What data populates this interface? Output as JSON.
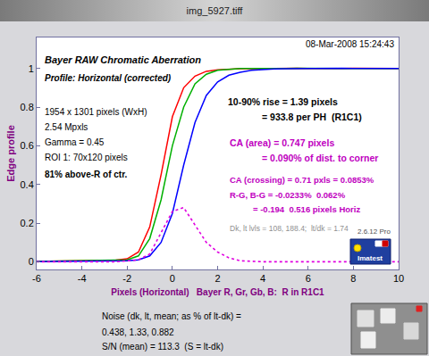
{
  "chart_data": {
    "type": "line",
    "window_title": "img_5927.tiff",
    "title": "Bayer RAW Chromatic Aberration",
    "subtitle": "Profile: Horizontal (corrected)",
    "x_label": "Pixels (Horizontal)   Bayer R, Gr, Gb, B:  R in R1C1",
    "y_label": "Edge profile",
    "annotations": {
      "date": "08-Mar-2008 15:24:43",
      "info": [
        "1954 x 1301 pixels (WxH)",
        "2.54 Mpxls",
        "Gamma = 0.45",
        "ROI 1: 70x120 pixels",
        "81% above-R of ctr."
      ],
      "rise": [
        "10-90% rise = 1.39 pixels",
        "= 933.8 per PH  (R1C1)"
      ],
      "ca_area": [
        "CA (area) = 0.747 pixels",
        "= 0.090% of dist. to corner"
      ],
      "ca_crossing": [
        "CA (crossing) = 0.71 pxls = 0.0853%",
        "R-G, B-G = -0.0233%  0.062%",
        "= -0.194  0.516 pixels Horiz"
      ],
      "levels": "Dk, lt lvls = 108, 188.4;  lt/dk = 1.74",
      "version": "2.6.12 Pro",
      "logo": "Imatest",
      "noise": [
        "Noise (dk, lt, mean; as % of lt-dk) =",
        "0.438, 1.33, 0.882",
        "S/N (mean) = 113.3  (S = lt-dk)"
      ]
    },
    "x": [
      -6,
      -5.5,
      -5,
      -4.5,
      -4,
      -3.5,
      -3,
      -2.5,
      -2,
      -1.5,
      -1,
      -0.5,
      0,
      0.5,
      1,
      1.5,
      2,
      2.5,
      3,
      3.5,
      4,
      4.5,
      5,
      5.5,
      6,
      6.5,
      7,
      7.5,
      8,
      8.5,
      9,
      9.5,
      10
    ],
    "series": [
      {
        "color": "#ff0000",
        "values": [
          0.002,
          0.003,
          0.002,
          0.004,
          0.003,
          0.005,
          0.006,
          0.008,
          0.015,
          0.05,
          0.18,
          0.45,
          0.75,
          0.9,
          0.96,
          0.985,
          0.993,
          0.997,
          0.998,
          0.999,
          1.0,
          0.999,
          1.0,
          1.001,
          1.0,
          0.999,
          1.0,
          1.0,
          1.001,
          1.0,
          0.999,
          1.0,
          1.0
        ]
      },
      {
        "color": "#00b000",
        "values": [
          0.001,
          0.002,
          0.002,
          0.003,
          0.003,
          0.004,
          0.005,
          0.006,
          0.01,
          0.03,
          0.12,
          0.32,
          0.6,
          0.8,
          0.92,
          0.97,
          0.99,
          0.995,
          1.0,
          1.0,
          0.999,
          1.0,
          1.0,
          1.001,
          1.0,
          1.0,
          0.999,
          1.0,
          1.0,
          1.0,
          1.001,
          1.0,
          1.0
        ]
      },
      {
        "color": "#0000ff",
        "values": [
          0.0,
          0.001,
          0.001,
          0.002,
          0.002,
          0.002,
          0.003,
          0.004,
          0.005,
          0.01,
          0.03,
          0.1,
          0.25,
          0.5,
          0.72,
          0.86,
          0.93,
          0.965,
          0.98,
          0.99,
          0.995,
          0.997,
          0.998,
          0.999,
          1.0,
          1.0,
          1.0,
          1.001,
          1.0,
          1.0,
          1.0,
          1.0,
          1.0
        ]
      },
      {
        "color": "#e000e0",
        "line_style": "dotted",
        "values": [
          0,
          0,
          0,
          0,
          0,
          0,
          0,
          0,
          0.005,
          0.01,
          0.04,
          0.15,
          0.26,
          0.28,
          0.19,
          0.1,
          0.05,
          0.02,
          0.005,
          0.002,
          0,
          0,
          0,
          0,
          0,
          0,
          0,
          0,
          0,
          0,
          0,
          0,
          0
        ]
      }
    ],
    "xlim": [
      -6,
      10
    ],
    "ylim": [
      -0.04,
      1.16
    ],
    "xticks": [
      -6,
      -4,
      -2,
      0,
      2,
      4,
      6,
      8,
      10
    ],
    "yticks": [
      0,
      0.2,
      0.4,
      0.6,
      0.8,
      1
    ],
    "grid": false
  }
}
